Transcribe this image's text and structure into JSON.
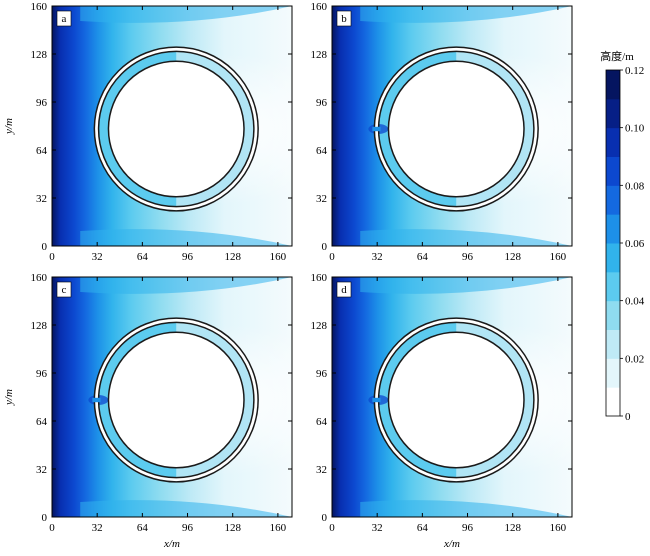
{
  "chart_data": [
    {
      "type": "heatmap",
      "panel_label": "a",
      "xlim": [
        0,
        170
      ],
      "ylim": [
        0,
        160
      ],
      "xticks": [
        0,
        32,
        64,
        96,
        128,
        160
      ],
      "yticks": [
        0,
        32,
        64,
        96,
        128,
        160
      ],
      "xlabel": "",
      "ylabel": "y/m",
      "structure": {
        "center": [
          88,
          78
        ],
        "inner_radius": 48,
        "ring_radii": [
          55,
          58
        ],
        "opening": false
      }
    },
    {
      "type": "heatmap",
      "panel_label": "b",
      "xlim": [
        0,
        170
      ],
      "ylim": [
        0,
        160
      ],
      "xticks": [
        0,
        32,
        64,
        96,
        128,
        160
      ],
      "yticks": [
        0,
        32,
        64,
        96,
        128,
        160
      ],
      "xlabel": "",
      "ylabel": "",
      "structure": {
        "center": [
          88,
          78
        ],
        "inner_radius": 48,
        "ring_radii": [
          55,
          58
        ],
        "opening": true
      }
    },
    {
      "type": "heatmap",
      "panel_label": "c",
      "xlim": [
        0,
        170
      ],
      "ylim": [
        0,
        160
      ],
      "xticks": [
        0,
        32,
        64,
        96,
        128,
        160
      ],
      "yticks": [
        0,
        32,
        64,
        96,
        128,
        160
      ],
      "xlabel": "x/m",
      "ylabel": "y/m",
      "structure": {
        "center": [
          88,
          78
        ],
        "inner_radius": 48,
        "ring_radii": [
          55,
          58
        ],
        "opening": true
      }
    },
    {
      "type": "heatmap",
      "panel_label": "d",
      "xlim": [
        0,
        170
      ],
      "ylim": [
        0,
        160
      ],
      "xticks": [
        0,
        32,
        64,
        96,
        128,
        160
      ],
      "yticks": [
        0,
        32,
        64,
        96,
        128,
        160
      ],
      "xlabel": "x/m",
      "ylabel": "",
      "structure": {
        "center": [
          88,
          78
        ],
        "inner_radius": 48,
        "ring_radii": [
          55,
          58
        ],
        "opening": true
      }
    }
  ],
  "colorbar": {
    "title": "高度/m",
    "min": 0,
    "max": 0.12,
    "ticks": [
      "0.12",
      "0.10",
      "0.08",
      "0.06",
      "0.04",
      "0.02",
      "0"
    ],
    "tick_values": [
      0.12,
      0.1,
      0.08,
      0.06,
      0.04,
      0.02,
      0
    ],
    "colors": [
      "#ffffff",
      "#e3f6fb",
      "#bfeaf6",
      "#8fdcf0",
      "#5ccbef",
      "#31b3ec",
      "#1d90e8",
      "#1469e0",
      "#0c48cf",
      "#082fb0",
      "#061f86",
      "#051560"
    ]
  }
}
